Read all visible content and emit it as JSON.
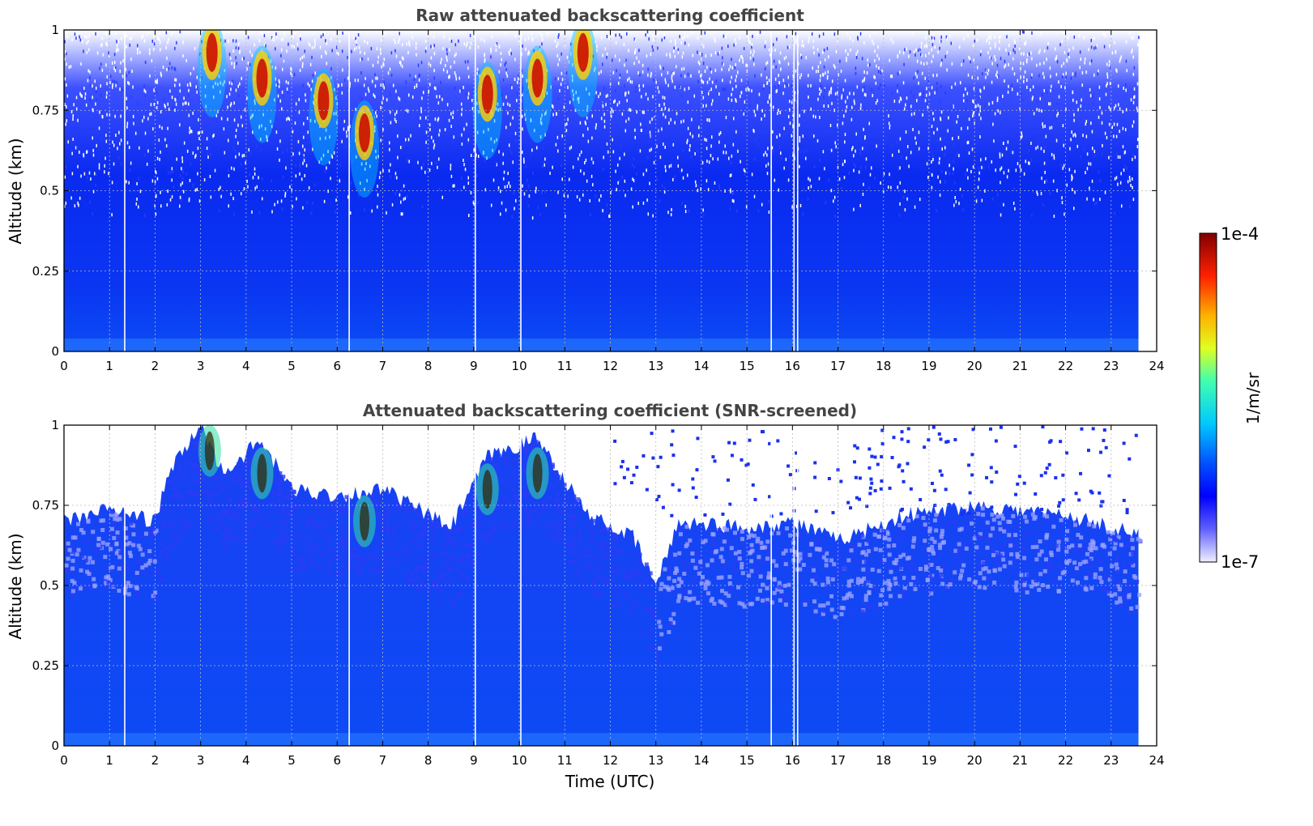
{
  "chart_data": [
    {
      "type": "heatmap",
      "title": "Raw attenuated backscattering coefficient",
      "xlabel": "",
      "ylabel": "Altitude (km)",
      "xlim": [
        0,
        24
      ],
      "ylim": [
        0,
        1
      ],
      "x_ticks": [
        "0",
        "1",
        "2",
        "3",
        "4",
        "5",
        "6",
        "7",
        "8",
        "9",
        "10",
        "11",
        "12",
        "13",
        "14",
        "15",
        "16",
        "17",
        "18",
        "19",
        "20",
        "21",
        "22",
        "23",
        "24"
      ],
      "y_ticks": [
        "0",
        "0.25",
        "0.5",
        "0.75",
        "1"
      ],
      "data_end_time": 23.6,
      "gap_times": [
        1.32,
        6.25,
        9.02,
        10.02,
        15.52,
        16.02,
        16.1
      ],
      "cloud_features": [
        {
          "time": 3.25,
          "altitude": 0.93
        },
        {
          "time": 4.35,
          "altitude": 0.85
        },
        {
          "time": 5.7,
          "altitude": 0.78
        },
        {
          "time": 6.6,
          "altitude": 0.68
        },
        {
          "time": 9.3,
          "altitude": 0.8
        },
        {
          "time": 10.4,
          "altitude": 0.85
        },
        {
          "time": 11.4,
          "altitude": 0.93
        }
      ],
      "grid": true
    },
    {
      "type": "heatmap",
      "title": "Attenuated backscattering coefficient (SNR-screened)",
      "xlabel": "Time (UTC)",
      "ylabel": "Altitude (km)",
      "xlim": [
        0,
        24
      ],
      "ylim": [
        0,
        1
      ],
      "x_ticks": [
        "0",
        "1",
        "2",
        "3",
        "4",
        "5",
        "6",
        "7",
        "8",
        "9",
        "10",
        "11",
        "12",
        "13",
        "14",
        "15",
        "16",
        "17",
        "18",
        "19",
        "20",
        "21",
        "22",
        "23",
        "24"
      ],
      "y_ticks": [
        "0",
        "0.25",
        "0.5",
        "0.75",
        "1"
      ],
      "data_end_time": 23.6,
      "gap_times": [
        1.32,
        6.25,
        9.02,
        10.02,
        15.52,
        16.02,
        16.1
      ],
      "signal_top_profile": [
        {
          "time": 0,
          "altitude": 0.7
        },
        {
          "time": 1,
          "altitude": 0.74
        },
        {
          "time": 2,
          "altitude": 0.7
        },
        {
          "time": 2.3,
          "altitude": 0.85
        },
        {
          "time": 3,
          "altitude": 1.0
        },
        {
          "time": 3.5,
          "altitude": 0.85
        },
        {
          "time": 4.3,
          "altitude": 0.95
        },
        {
          "time": 5,
          "altitude": 0.8
        },
        {
          "time": 6,
          "altitude": 0.78
        },
        {
          "time": 7,
          "altitude": 0.8
        },
        {
          "time": 8.5,
          "altitude": 0.68
        },
        {
          "time": 9.3,
          "altitude": 0.9
        },
        {
          "time": 10.4,
          "altitude": 0.96
        },
        {
          "time": 11.5,
          "altitude": 0.72
        },
        {
          "time": 12.5,
          "altitude": 0.65
        },
        {
          "time": 13,
          "altitude": 0.5
        },
        {
          "time": 13.5,
          "altitude": 0.7
        },
        {
          "time": 15,
          "altitude": 0.68
        },
        {
          "time": 16,
          "altitude": 0.7
        },
        {
          "time": 17,
          "altitude": 0.64
        },
        {
          "time": 18.5,
          "altitude": 0.72
        },
        {
          "time": 20,
          "altitude": 0.75
        },
        {
          "time": 22,
          "altitude": 0.72
        },
        {
          "time": 23.6,
          "altitude": 0.66
        }
      ],
      "grid": true
    }
  ],
  "colorbar": {
    "min_label": "1e-7",
    "max_label": "1e-4",
    "unit_label": "1/m/sr",
    "colormap": [
      "#ffffff",
      "#0000ff",
      "#00ffff",
      "#ffff00",
      "#ff0000",
      "#800000"
    ]
  }
}
